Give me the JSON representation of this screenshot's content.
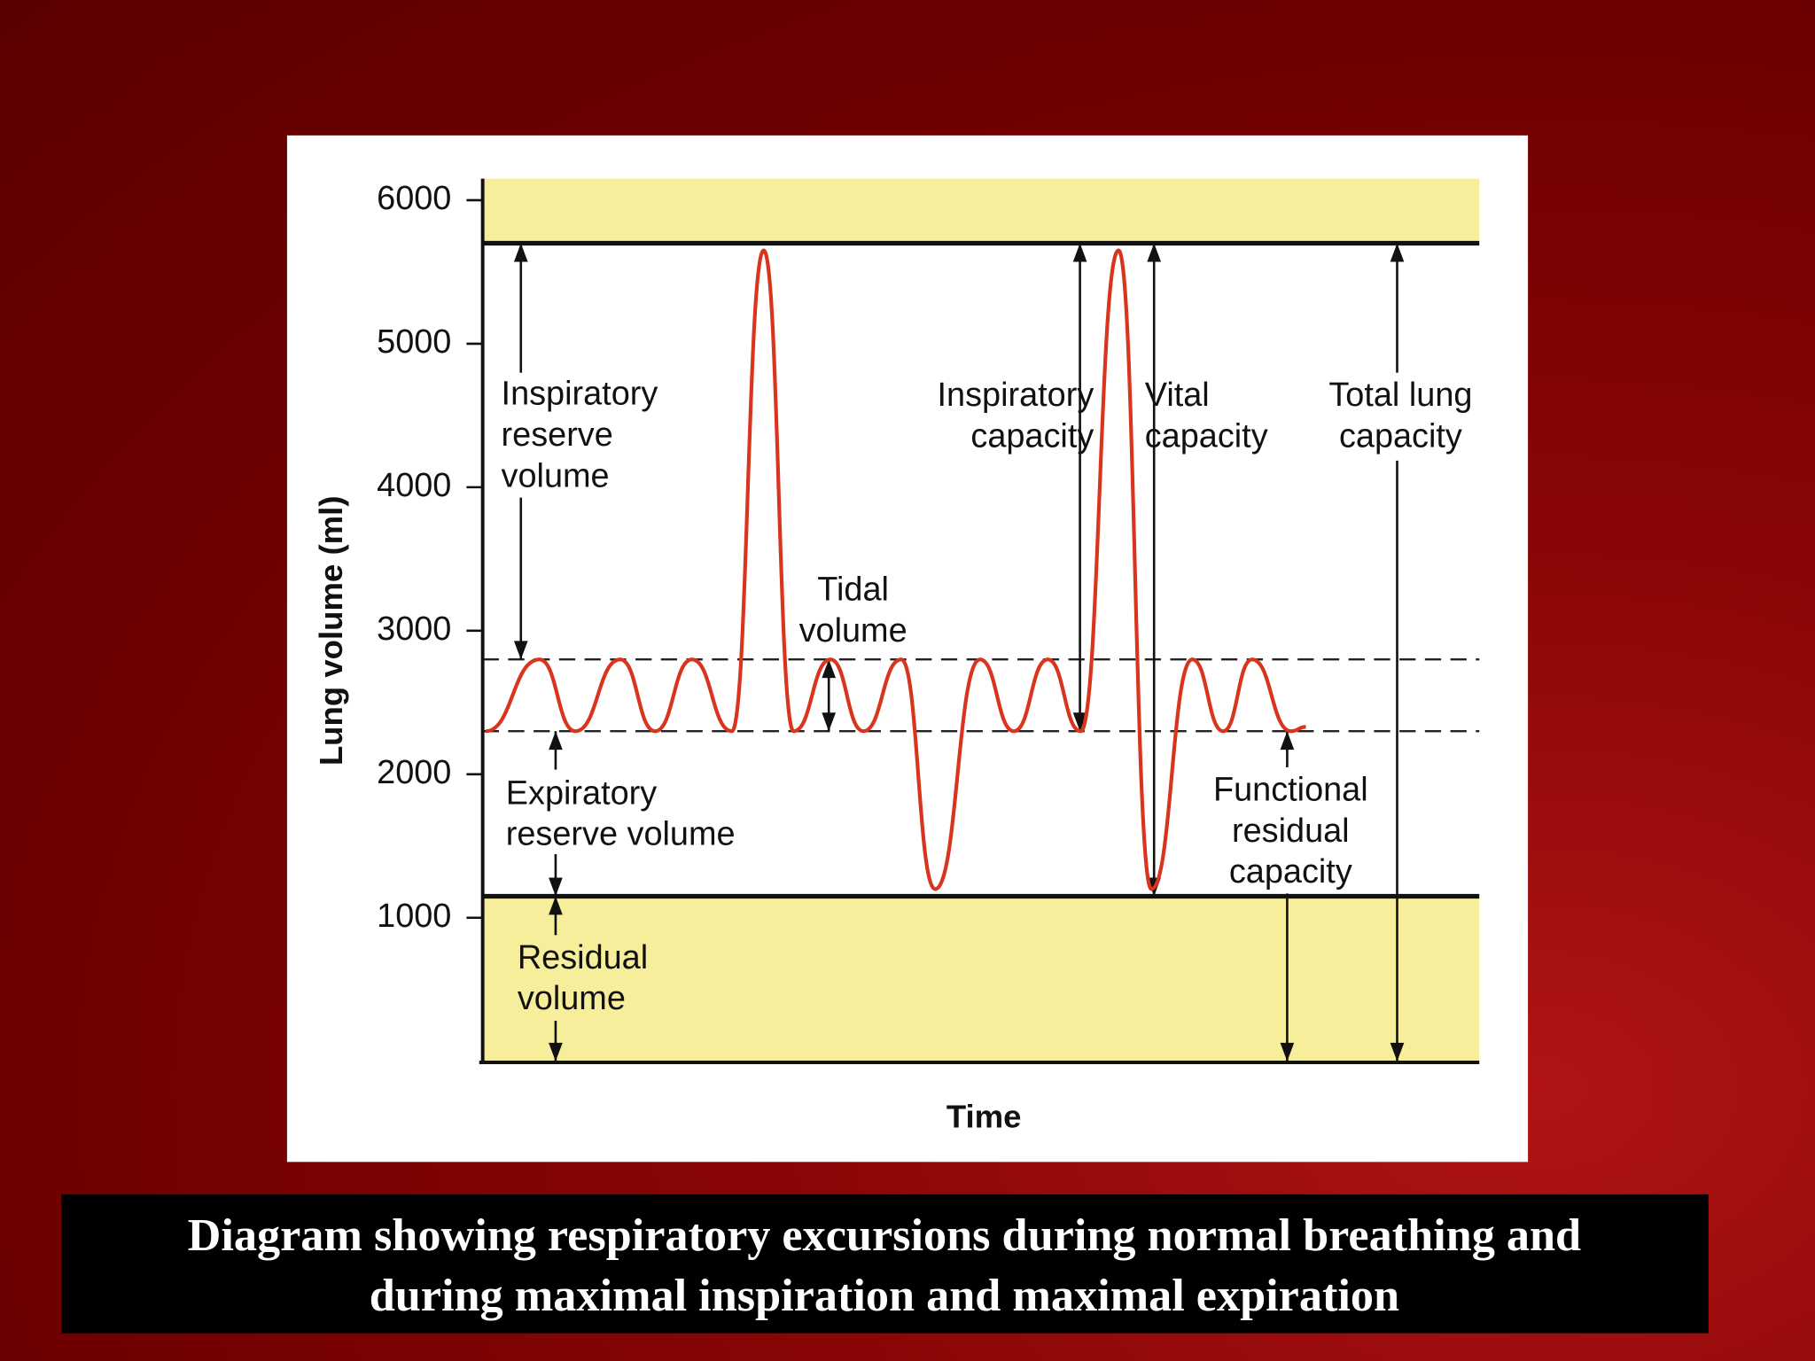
{
  "chart_data": {
    "type": "line",
    "ylabel": "Lung volume (ml)",
    "xlabel": "Time",
    "ylim": [
      0,
      6150
    ],
    "yticks": [
      1000,
      2000,
      3000,
      4000,
      5000,
      6000
    ],
    "xlim": [
      0,
      100
    ],
    "x": [
      0.3,
      5.7,
      9.3,
      13.8,
      17.3,
      21.0,
      25.0,
      28.2,
      31.2,
      34.9,
      38.2,
      42.0,
      45.4,
      49.9,
      53.3,
      56.7,
      60.0,
      63.8,
      67.1,
      71.2,
      74.3,
      77.2,
      81.1,
      82.6
    ],
    "values": [
      2300,
      2800,
      2300,
      2800,
      2300,
      2800,
      2300,
      5650,
      2300,
      2800,
      2300,
      2800,
      1200,
      2800,
      2300,
      2800,
      2300,
      5650,
      1200,
      2800,
      2300,
      2800,
      2300,
      2330
    ],
    "color": "#d8341e",
    "levels": {
      "total_lung_capacity": 5700,
      "tidal_top": 2800,
      "tidal_bottom": 2300,
      "residual": 1150
    },
    "annotations": [
      {
        "lines": [
          "Inspiratory",
          "reserve",
          "volume"
        ]
      },
      {
        "lines": [
          "Tidal",
          "volume"
        ]
      },
      {
        "lines": [
          "Inspiratory",
          "capacity"
        ]
      },
      {
        "lines": [
          "Vital",
          "capacity"
        ]
      },
      {
        "lines": [
          "Total lung",
          "capacity"
        ]
      },
      {
        "lines": [
          "Expiratory",
          "reserve volume"
        ]
      },
      {
        "lines": [
          "Residual",
          "volume"
        ]
      },
      {
        "lines": [
          "Functional",
          "residual",
          "capacity"
        ]
      }
    ]
  },
  "caption": [
    "Diagram showing respiratory excursions during normal breathing and",
    "during maximal inspiration and maximal expiration"
  ]
}
